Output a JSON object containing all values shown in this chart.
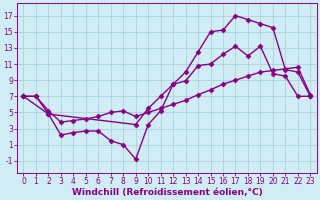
{
  "bg_color": "#d0ecf4",
  "line_color": "#880088",
  "grid_color": "#aad4dc",
  "xlabel": "Windchill (Refroidissement éolien,°C)",
  "ylabel_ticks": [
    -1,
    1,
    3,
    5,
    7,
    9,
    11,
    13,
    15,
    17
  ],
  "xticks": [
    0,
    1,
    2,
    3,
    4,
    5,
    6,
    7,
    8,
    9,
    10,
    11,
    12,
    13,
    14,
    15,
    16,
    17,
    18,
    19,
    20,
    21,
    22,
    23
  ],
  "xlim": [
    -0.5,
    23.5
  ],
  "ylim": [
    -2.5,
    18.5
  ],
  "line1_x": [
    0,
    1,
    2,
    3,
    4,
    5,
    6,
    7,
    8,
    9,
    10,
    11,
    12,
    13,
    14,
    15,
    16,
    17,
    18,
    19,
    20,
    21,
    22,
    23
  ],
  "line1_y": [
    7.0,
    7.0,
    4.8,
    2.2,
    2.5,
    2.7,
    2.7,
    1.5,
    1.0,
    -0.8,
    3.5,
    5.2,
    8.5,
    8.9,
    10.8,
    11.0,
    12.2,
    13.2,
    12.0,
    13.2,
    9.8,
    9.5,
    7.0,
    7.0
  ],
  "line2_x": [
    0,
    2,
    9,
    10,
    11,
    12,
    13,
    14,
    15,
    16,
    17,
    18,
    19,
    20,
    21,
    22,
    23
  ],
  "line2_y": [
    7.0,
    4.8,
    3.5,
    5.5,
    7.0,
    8.5,
    10.0,
    12.5,
    15.0,
    15.2,
    17.0,
    16.5,
    16.0,
    15.5,
    10.3,
    10.0,
    7.0
  ],
  "line3_x": [
    0,
    1,
    2,
    3,
    4,
    5,
    6,
    7,
    8,
    9,
    10,
    11,
    12,
    13,
    14,
    15,
    16,
    17,
    18,
    19,
    20,
    21,
    22,
    23
  ],
  "line3_y": [
    7.0,
    7.0,
    5.2,
    3.8,
    4.0,
    4.2,
    4.5,
    5.0,
    5.2,
    4.5,
    5.0,
    5.5,
    6.0,
    6.5,
    7.2,
    7.8,
    8.5,
    9.0,
    9.5,
    10.0,
    10.2,
    10.4,
    10.6,
    7.2
  ],
  "marker": "D",
  "markersize": 2.5,
  "linewidth": 1.0,
  "font_color": "#880088",
  "tick_fontsize": 5.5,
  "label_fontsize": 6.5
}
